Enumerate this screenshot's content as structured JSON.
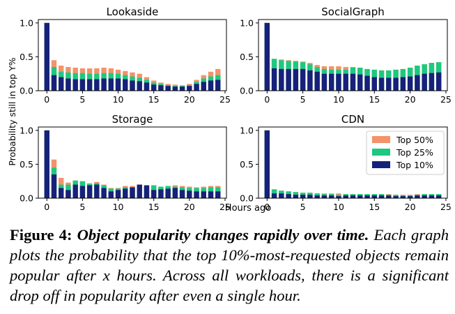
{
  "figure": {
    "shared_ylabel": "Probability still in top Y%",
    "shared_xlabel": "Hours ago"
  },
  "legend": {
    "placement": "bottom-right panel, upper-right",
    "entries": [
      {
        "label": "Top 50%",
        "color": "#f4926a"
      },
      {
        "label": "Top 25%",
        "color": "#1dc97e"
      },
      {
        "label": "Top 10%",
        "color": "#16217a"
      }
    ]
  },
  "caption": {
    "lead": "Figure 4:",
    "headline": "Object popularity changes rapidly over time.",
    "rest": "Each graph plots the probability that the top 10%-most-requested objects remain popular after x hours. Across all workloads, there is a significant drop off in popularity after even a single hour."
  },
  "chart_data": [
    {
      "type": "bar",
      "title": "Lookaside",
      "xlabel": "",
      "ylabel": "",
      "x": [
        0,
        1,
        2,
        3,
        4,
        5,
        6,
        7,
        8,
        9,
        10,
        11,
        12,
        13,
        14,
        15,
        16,
        17,
        18,
        19,
        20,
        21,
        22,
        23,
        24
      ],
      "xticks": [
        "0",
        "5",
        "10",
        "15",
        "20",
        "25"
      ],
      "yticks": [
        "0.0",
        "0.5",
        "1.0"
      ],
      "ylim": [
        0,
        1.05
      ],
      "stacked_overlay": true,
      "series": [
        {
          "name": "Top 50%",
          "values": [
            1.0,
            0.45,
            0.37,
            0.35,
            0.34,
            0.33,
            0.33,
            0.33,
            0.34,
            0.33,
            0.31,
            0.29,
            0.27,
            0.25,
            0.2,
            0.15,
            0.12,
            0.1,
            0.09,
            0.08,
            0.1,
            0.16,
            0.23,
            0.28,
            0.32
          ]
        },
        {
          "name": "Top 25%",
          "values": [
            1.0,
            0.35,
            0.28,
            0.27,
            0.26,
            0.26,
            0.25,
            0.25,
            0.26,
            0.26,
            0.25,
            0.23,
            0.21,
            0.19,
            0.16,
            0.12,
            0.1,
            0.08,
            0.07,
            0.07,
            0.08,
            0.13,
            0.18,
            0.21,
            0.23
          ]
        },
        {
          "name": "Top 10%",
          "values": [
            1.0,
            0.23,
            0.2,
            0.18,
            0.17,
            0.17,
            0.17,
            0.17,
            0.18,
            0.18,
            0.18,
            0.17,
            0.15,
            0.14,
            0.12,
            0.09,
            0.08,
            0.07,
            0.06,
            0.06,
            0.07,
            0.1,
            0.13,
            0.15,
            0.16
          ]
        }
      ]
    },
    {
      "type": "bar",
      "title": "SocialGraph",
      "xlabel": "",
      "ylabel": "",
      "x": [
        0,
        1,
        2,
        3,
        4,
        5,
        6,
        7,
        8,
        9,
        10,
        11,
        12,
        13,
        14,
        15,
        16,
        17,
        18,
        19,
        20,
        21,
        22,
        23,
        24
      ],
      "xticks": [
        "0",
        "5",
        "10",
        "15",
        "20",
        "25"
      ],
      "yticks": [
        "0.0",
        "0.5",
        "1.0"
      ],
      "ylim": [
        0,
        1.05
      ],
      "stacked_overlay": true,
      "series": [
        {
          "name": "Top 50%",
          "values": [
            1.0,
            0.47,
            0.46,
            0.45,
            0.44,
            0.43,
            0.41,
            0.38,
            0.36,
            0.36,
            0.36,
            0.35,
            0.35,
            0.34,
            0.32,
            0.31,
            0.3,
            0.3,
            0.31,
            0.32,
            0.34,
            0.37,
            0.39,
            0.41,
            0.42
          ]
        },
        {
          "name": "Top 25%",
          "values": [
            1.0,
            0.47,
            0.45,
            0.44,
            0.43,
            0.42,
            0.39,
            0.35,
            0.32,
            0.31,
            0.31,
            0.31,
            0.34,
            0.34,
            0.32,
            0.31,
            0.3,
            0.3,
            0.31,
            0.32,
            0.34,
            0.37,
            0.39,
            0.41,
            0.42
          ]
        },
        {
          "name": "Top 10%",
          "values": [
            1.0,
            0.33,
            0.32,
            0.32,
            0.32,
            0.32,
            0.3,
            0.28,
            0.25,
            0.25,
            0.25,
            0.25,
            0.25,
            0.24,
            0.22,
            0.2,
            0.19,
            0.19,
            0.19,
            0.2,
            0.21,
            0.23,
            0.25,
            0.26,
            0.27
          ]
        }
      ]
    },
    {
      "type": "bar",
      "title": "Storage",
      "xlabel": "",
      "ylabel": "",
      "x": [
        0,
        1,
        2,
        3,
        4,
        5,
        6,
        7,
        8,
        9,
        10,
        11,
        12,
        13,
        14,
        15,
        16,
        17,
        18,
        19,
        20,
        21,
        22,
        23,
        24
      ],
      "xticks": [
        "0",
        "5",
        "10",
        "15",
        "20",
        "25"
      ],
      "yticks": [
        "0.0",
        "0.5",
        "1.0"
      ],
      "ylim": [
        0,
        1.05
      ],
      "stacked_overlay": true,
      "series": [
        {
          "name": "Top 50%",
          "values": [
            1.0,
            0.57,
            0.3,
            0.23,
            0.26,
            0.25,
            0.22,
            0.24,
            0.2,
            0.15,
            0.15,
            0.18,
            0.18,
            0.2,
            0.19,
            0.19,
            0.17,
            0.18,
            0.19,
            0.18,
            0.17,
            0.16,
            0.17,
            0.18,
            0.18
          ]
        },
        {
          "name": "Top 25%",
          "values": [
            1.0,
            0.45,
            0.2,
            0.2,
            0.26,
            0.25,
            0.21,
            0.22,
            0.19,
            0.14,
            0.14,
            0.16,
            0.16,
            0.18,
            0.17,
            0.19,
            0.17,
            0.18,
            0.17,
            0.16,
            0.15,
            0.15,
            0.15,
            0.16,
            0.16
          ]
        },
        {
          "name": "Top 10%",
          "values": [
            1.0,
            0.35,
            0.15,
            0.12,
            0.2,
            0.18,
            0.19,
            0.2,
            0.15,
            0.1,
            0.12,
            0.14,
            0.16,
            0.2,
            0.19,
            0.12,
            0.13,
            0.14,
            0.15,
            0.12,
            0.11,
            0.1,
            0.1,
            0.1,
            0.1
          ]
        }
      ]
    },
    {
      "type": "bar",
      "title": "CDN",
      "xlabel": "",
      "ylabel": "",
      "x": [
        0,
        1,
        2,
        3,
        4,
        5,
        6,
        7,
        8,
        9,
        10,
        11,
        12,
        13,
        14,
        15,
        16,
        17,
        18,
        19,
        20,
        21,
        22,
        23,
        24
      ],
      "xticks": [
        "0",
        "5",
        "10",
        "15",
        "20",
        "25"
      ],
      "yticks": [
        "0.0",
        "0.5",
        "1.0"
      ],
      "ylim": [
        0,
        1.05
      ],
      "stacked_overlay": true,
      "series": [
        {
          "name": "Top 50%",
          "values": [
            1.0,
            0.13,
            0.11,
            0.1,
            0.09,
            0.08,
            0.08,
            0.07,
            0.07,
            0.07,
            0.07,
            0.06,
            0.06,
            0.06,
            0.06,
            0.06,
            0.06,
            0.06,
            0.05,
            0.05,
            0.05,
            0.06,
            0.06,
            0.06,
            0.06
          ]
        },
        {
          "name": "Top 25%",
          "values": [
            1.0,
            0.13,
            0.11,
            0.1,
            0.09,
            0.08,
            0.08,
            0.07,
            0.06,
            0.06,
            0.05,
            0.06,
            0.06,
            0.06,
            0.06,
            0.06,
            0.06,
            0.05,
            0.05,
            0.04,
            0.04,
            0.05,
            0.06,
            0.06,
            0.06
          ]
        },
        {
          "name": "Top 10%",
          "values": [
            1.0,
            0.07,
            0.07,
            0.06,
            0.05,
            0.05,
            0.05,
            0.04,
            0.04,
            0.04,
            0.03,
            0.04,
            0.04,
            0.04,
            0.04,
            0.04,
            0.04,
            0.04,
            0.03,
            0.03,
            0.03,
            0.04,
            0.04,
            0.04,
            0.04
          ]
        }
      ]
    }
  ]
}
